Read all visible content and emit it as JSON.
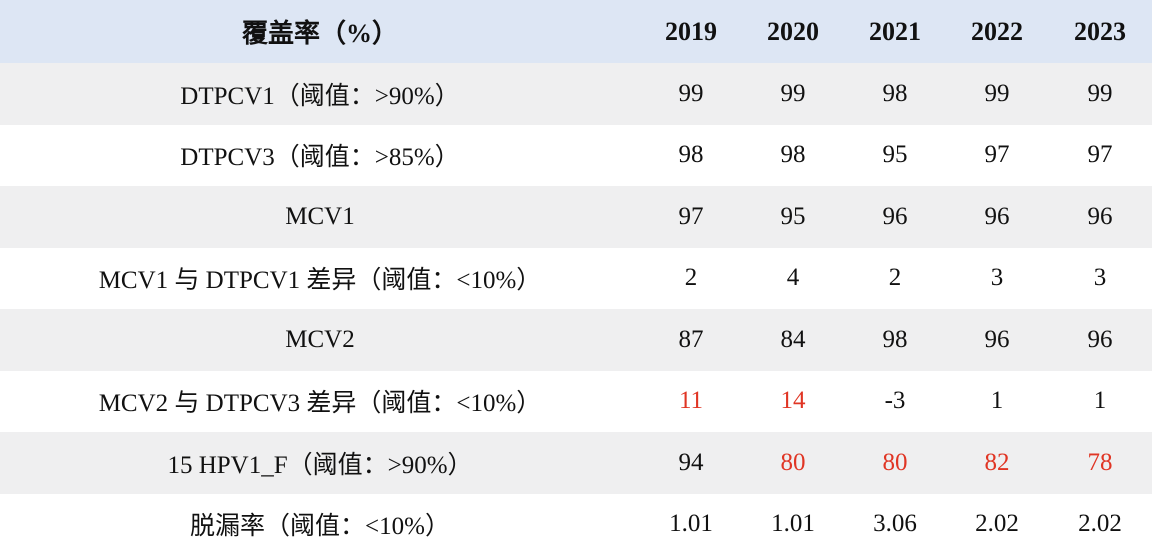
{
  "table": {
    "header": {
      "label": "覆盖率（%）",
      "years": [
        "2019",
        "2020",
        "2021",
        "2022",
        "2023"
      ]
    },
    "accent_color": "#e03524",
    "header_bg": "#dde6f4",
    "shaded_row_bg": "#efeff0",
    "rows": [
      {
        "label": "DTPCV1（阈值：>90%）",
        "values": [
          "99",
          "99",
          "98",
          "99",
          "99"
        ],
        "flags": [
          false,
          false,
          false,
          false,
          false
        ]
      },
      {
        "label": "DTPCV3（阈值：>85%）",
        "values": [
          "98",
          "98",
          "95",
          "97",
          "97"
        ],
        "flags": [
          false,
          false,
          false,
          false,
          false
        ]
      },
      {
        "label": "MCV1",
        "values": [
          "97",
          "95",
          "96",
          "96",
          "96"
        ],
        "flags": [
          false,
          false,
          false,
          false,
          false
        ]
      },
      {
        "label": "MCV1 与 DTPCV1 差异（阈值：<10%）",
        "values": [
          "2",
          "4",
          "2",
          "3",
          "3"
        ],
        "flags": [
          false,
          false,
          false,
          false,
          false
        ]
      },
      {
        "label": "MCV2",
        "values": [
          "87",
          "84",
          "98",
          "96",
          "96"
        ],
        "flags": [
          false,
          false,
          false,
          false,
          false
        ]
      },
      {
        "label": "MCV2 与 DTPCV3 差异（阈值：<10%）",
        "values": [
          "11",
          "14",
          "-3",
          "1",
          "1"
        ],
        "flags": [
          true,
          true,
          false,
          false,
          false
        ]
      },
      {
        "label": "15 HPV1_F（阈值：>90%）",
        "values": [
          "94",
          "80",
          "80",
          "82",
          "78"
        ],
        "flags": [
          false,
          true,
          true,
          true,
          true
        ]
      },
      {
        "label": "脱漏率（阈值：<10%）",
        "values": [
          "1.01",
          "1.01",
          "3.06",
          "2.02",
          "2.02"
        ],
        "flags": [
          false,
          false,
          false,
          false,
          false
        ]
      }
    ]
  }
}
